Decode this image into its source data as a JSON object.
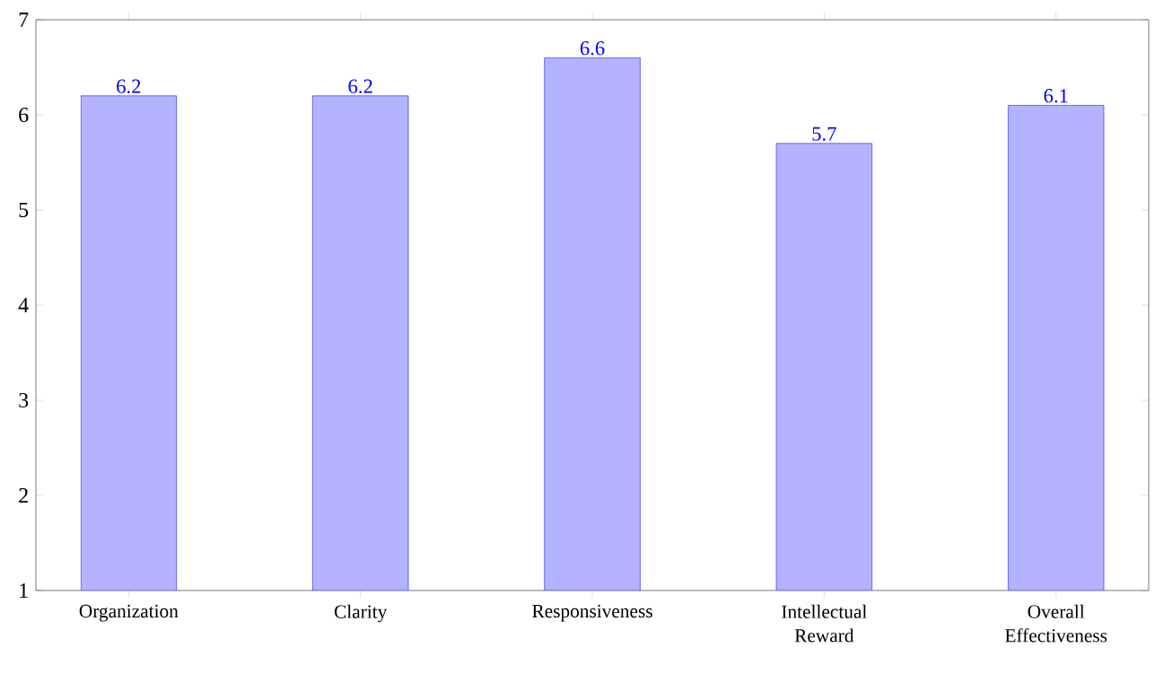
{
  "chart_data": {
    "type": "bar",
    "categories": [
      "Organization",
      "Clarity",
      "Responsiveness",
      "Intellectual Reward",
      "Overall Effectiveness"
    ],
    "values": [
      6.2,
      6.2,
      6.6,
      5.7,
      6.1
    ],
    "color": "#b3b3ff",
    "ylim": [
      1,
      7
    ],
    "yticks": [
      1,
      2,
      3,
      4,
      5,
      6,
      7
    ],
    "data_labels": true,
    "grid": false
  }
}
